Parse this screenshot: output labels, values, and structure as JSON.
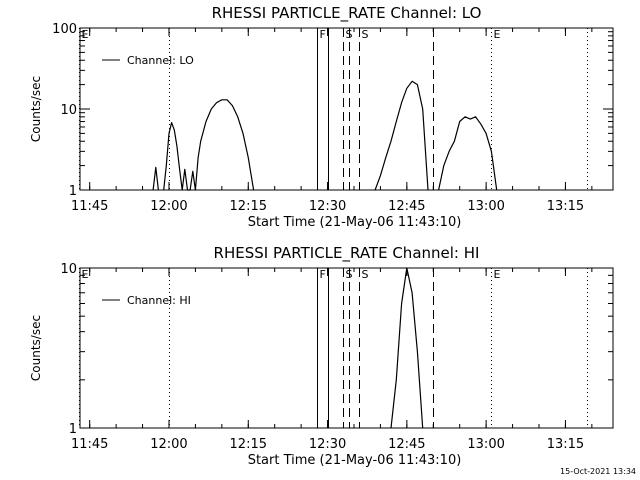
{
  "chart_data": [
    {
      "type": "line",
      "title": "RHESSI PARTICLE_RATE Channel: LO",
      "xlabel": "Start Time (21-May-06 11:43:10)",
      "ylabel": "Counts/sec",
      "yscale": "log",
      "ylim": [
        1,
        100
      ],
      "y_tick_labels": [
        "1",
        "10",
        "100"
      ],
      "x_tick_labels": [
        "11:45",
        "12:00",
        "12:15",
        "12:30",
        "12:45",
        "13:00",
        "13:15"
      ],
      "legend": {
        "label": "Channel: LO",
        "placement": "top-left"
      },
      "markers": [
        {
          "label": "E",
          "time": "11:43",
          "style": "dotted"
        },
        {
          "label": "",
          "time": "12:00",
          "style": "dotted"
        },
        {
          "label": "F",
          "time": "12:28",
          "style": "solid"
        },
        {
          "label": "",
          "time": "12:30",
          "style": "solid"
        },
        {
          "label": "S",
          "time": "12:33",
          "style": "dashed"
        },
        {
          "label": "",
          "time": "12:34",
          "style": "dashed"
        },
        {
          "label": "S",
          "time": "12:36",
          "style": "dashed"
        },
        {
          "label": "",
          "time": "12:50",
          "style": "dashed"
        },
        {
          "label": "E",
          "time": "13:01",
          "style": "dotted"
        },
        {
          "label": "",
          "time": "13:19",
          "style": "dotted"
        }
      ],
      "series": [
        {
          "x": [
            "11:57",
            "11:57.5",
            "11:58",
            "11:58.5",
            "11:59",
            "11:59.5",
            "12:00",
            "12:00.5",
            "12:01",
            "12:01.5",
            "12:02",
            "12:02.5",
            "12:03",
            "12:03.5",
            "12:04",
            "12:04.5",
            "12:05",
            "12:05.5",
            "12:06",
            "12:07",
            "12:08",
            "12:09",
            "12:10",
            "12:11",
            "12:12",
            "12:13",
            "12:14",
            "12:15",
            "12:16"
          ],
          "y": [
            1,
            1.9,
            1,
            null,
            1,
            2,
            5,
            6.8,
            5.5,
            3.5,
            1.8,
            1,
            1.8,
            1,
            1,
            1.7,
            1,
            2.5,
            4,
            7,
            10,
            12,
            13,
            13,
            11,
            8,
            5,
            2.5,
            1
          ]
        },
        {
          "x": [
            "12:39",
            "12:40",
            "12:41",
            "12:42",
            "12:43",
            "12:44",
            "12:45",
            "12:46",
            "12:47",
            "12:48",
            "12:49"
          ],
          "y": [
            1,
            1.5,
            2.5,
            4,
            7,
            12,
            18,
            22,
            20,
            10,
            1
          ]
        },
        {
          "x": [
            "12:51",
            "12:52",
            "12:53",
            "12:54",
            "12:55",
            "12:56",
            "12:57",
            "12:58",
            "12:59",
            "13:00",
            "13:01",
            "13:02"
          ],
          "y": [
            1,
            2,
            3,
            4,
            7,
            8,
            7.5,
            8,
            6.5,
            5,
            3,
            1
          ]
        }
      ]
    },
    {
      "type": "line",
      "title": "RHESSI PARTICLE_RATE Channel: HI",
      "xlabel": "Start Time (21-May-06 11:43:10)",
      "ylabel": "Counts/sec",
      "yscale": "log",
      "ylim": [
        1,
        10
      ],
      "y_tick_labels": [
        "1",
        "10"
      ],
      "x_tick_labels": [
        "11:45",
        "12:00",
        "12:15",
        "12:30",
        "12:45",
        "13:00",
        "13:15"
      ],
      "legend": {
        "label": "Channel: HI",
        "placement": "top-left"
      },
      "markers": [
        {
          "label": "E",
          "time": "11:43",
          "style": "dotted"
        },
        {
          "label": "",
          "time": "12:00",
          "style": "dotted"
        },
        {
          "label": "F",
          "time": "12:28",
          "style": "solid"
        },
        {
          "label": "",
          "time": "12:30",
          "style": "solid"
        },
        {
          "label": "S",
          "time": "12:33",
          "style": "dashed"
        },
        {
          "label": "",
          "time": "12:34",
          "style": "dashed"
        },
        {
          "label": "S",
          "time": "12:36",
          "style": "dashed"
        },
        {
          "label": "",
          "time": "12:50",
          "style": "dashed"
        },
        {
          "label": "E",
          "time": "13:01",
          "style": "dotted"
        },
        {
          "label": "",
          "time": "13:19",
          "style": "dotted"
        }
      ],
      "series": [
        {
          "x": [
            "12:42",
            "12:43",
            "12:44",
            "12:45",
            "12:46",
            "12:47",
            "12:48"
          ],
          "y": [
            1,
            2,
            6,
            10,
            7,
            3,
            1
          ]
        }
      ]
    }
  ],
  "footer": {
    "timestamp": "15-Oct-2021 13:34"
  }
}
